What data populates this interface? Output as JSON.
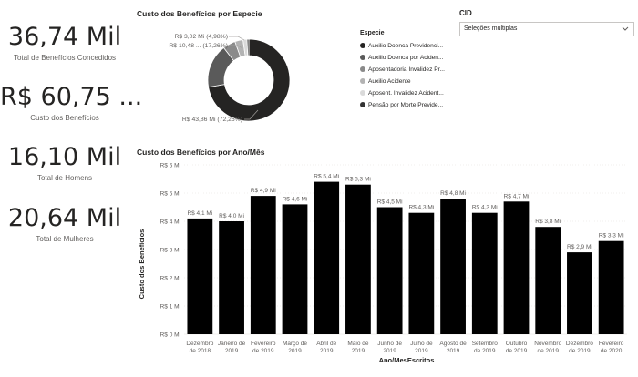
{
  "kpis": [
    {
      "value": "36,74 Mil",
      "label": "Total de Benefícios Concedidos"
    },
    {
      "value": "R$ 60,75 ...",
      "label": "Custo dos Benefícios"
    },
    {
      "value": "16,10 Mil",
      "label": "Total de Homens"
    },
    {
      "value": "20,64 Mil",
      "label": "Total de Mulheres"
    }
  ],
  "donut": {
    "title": "Custo dos Benefícios por Especie",
    "legend_title": "Especie",
    "labels": [
      "R$ 3,02 Mi (4,98%)",
      "R$ 10,48 ... (17,26%)",
      "R$ 43,86 Mi (72,26%)"
    ]
  },
  "slicer": {
    "title": "CID",
    "value": "Seleções múltiplas"
  },
  "bar": {
    "title": "Custo dos Benefícios por Ano/Mês"
  },
  "colors": {
    "bar": "#000000",
    "text": "#252423",
    "muted": "#605e5c",
    "grid": "#e1dfdd"
  },
  "chart_data": [
    {
      "type": "pie",
      "title": "Custo dos Benefícios por Especie",
      "legend_title": "Especie",
      "categories": [
        "Auxilio Doenca Previdenciário",
        "Auxilio Doenca por Acidente do Trabalho",
        "Aposentadoria Invalidez Previdenciária",
        "Auxilio Acidente",
        "Aposent. Invalidez Acidente do Trabalho",
        "Pensão por Morte Previdenciária"
      ],
      "legend_display": [
        "Auxilio Doenca Previdenci...",
        "Auxilio Doenca por Aciden...",
        "Aposentadoria Invalidez Pr...",
        "Auxilio Acidente",
        "Aposent. Invalidez Acident...",
        "Pensão por Morte Previde..."
      ],
      "values": [
        72.26,
        17.26,
        4.98,
        3.2,
        1.6,
        0.7
      ],
      "colors": [
        "#252423",
        "#5a5a5a",
        "#8a8a8a",
        "#b3b3b3",
        "#dadada",
        "#333333"
      ],
      "unit": "%"
    },
    {
      "type": "bar",
      "title": "Custo dos Benefícios por Ano/Mês",
      "xlabel": "Ano/MesEscritos",
      "ylabel": "Custo dos Benefícios",
      "categories": [
        [
          "Dezembro",
          "de 2018"
        ],
        [
          "Janeiro de",
          "2019"
        ],
        [
          "Fevereiro",
          "de 2019"
        ],
        [
          "Março de",
          "2019"
        ],
        [
          "Abril de",
          "2019"
        ],
        [
          "Maio de",
          "2019"
        ],
        [
          "Junho de",
          "2019"
        ],
        [
          "Julho de",
          "2019"
        ],
        [
          "Agosto de",
          "2019"
        ],
        [
          "Setembro",
          "de 2019"
        ],
        [
          "Outubro",
          "de 2019"
        ],
        [
          "Novembro",
          "de 2019"
        ],
        [
          "Dezembro",
          "de 2019"
        ],
        [
          "Fevereiro",
          "de 2020"
        ]
      ],
      "values": [
        4.1,
        4.0,
        4.9,
        4.6,
        5.4,
        5.3,
        4.5,
        4.3,
        4.8,
        4.3,
        4.7,
        3.8,
        2.9,
        3.3
      ],
      "data_labels": [
        "R$ 4,1 Mi",
        "R$ 4,0 Mi",
        "R$ 4,9 Mi",
        "R$ 4,6 Mi",
        "R$ 5,4 Mi",
        "R$ 5,3 Mi",
        "R$ 4,5 Mi",
        "R$ 4,3 Mi",
        "R$ 4,8 Mi",
        "R$ 4,3 Mi",
        "R$ 4,7 Mi",
        "R$ 3,8 Mi",
        "R$ 2,9 Mi",
        "R$ 3,3 Mi"
      ],
      "ylim": [
        0,
        6
      ],
      "yticks": [
        0,
        1,
        2,
        3,
        4,
        5,
        6
      ],
      "ytick_labels": [
        "R$ 0 Mi",
        "R$ 1 Mi",
        "R$ 2 Mi",
        "R$ 3 Mi",
        "R$ 4 Mi",
        "R$ 5 Mi",
        "R$ 6 Mi"
      ],
      "grid": true
    }
  ]
}
